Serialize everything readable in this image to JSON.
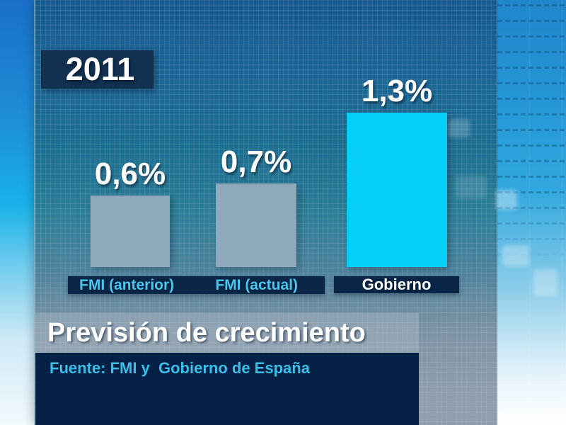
{
  "chart_data": {
    "type": "bar",
    "title": "Previsión de crecimiento",
    "year_label": "2011",
    "source": "Fuente: FMI y  Gobierno de España",
    "categories": [
      "FMI (anterior)",
      "FMI (actual)",
      "Gobierno"
    ],
    "values": [
      0.6,
      0.7,
      1.3
    ],
    "value_labels": [
      "0,6%",
      "0,7%",
      "1,3%"
    ],
    "unit": "percent",
    "ylim": [
      0,
      1.4
    ],
    "legend_position": "none",
    "grid": "decorative background grid texture",
    "highlight_index": 2,
    "colors": {
      "bar_default": "#8ea9bc",
      "bar_highlight": "#06cff7",
      "navy_band": "#0a2646",
      "source_band": "#052145",
      "category_text": "#49c7ee",
      "highlight_category_text": "#ffffff",
      "source_text": "#3bbfe8",
      "value_text": "#ffffff",
      "panel_blue_top": "#175a90",
      "panel_gray_bottom": "#909dac"
    }
  }
}
